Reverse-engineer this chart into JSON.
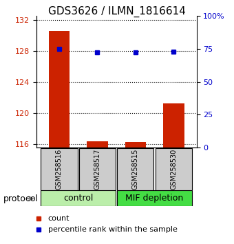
{
  "title": "GDS3626 / ILMN_1816614",
  "samples": [
    "GSM258516",
    "GSM258517",
    "GSM258515",
    "GSM258530"
  ],
  "counts": [
    130.5,
    116.3,
    116.2,
    121.2
  ],
  "percentiles": [
    75.0,
    72.5,
    72.5,
    72.8
  ],
  "ylim_left": [
    115.5,
    132.5
  ],
  "ylim_right": [
    0,
    100
  ],
  "yticks_left": [
    116,
    120,
    124,
    128,
    132
  ],
  "yticks_right": [
    0,
    25,
    50,
    75,
    100
  ],
  "ytick_labels_right": [
    "0",
    "25",
    "50",
    "75",
    "100%"
  ],
  "bar_color": "#cc2200",
  "dot_color": "#0000cc",
  "bar_width": 0.55,
  "groups": [
    {
      "label": "control",
      "samples": [
        0,
        1
      ],
      "color": "#bbeeaa"
    },
    {
      "label": "MIF depletion",
      "samples": [
        2,
        3
      ],
      "color": "#44dd44"
    }
  ],
  "protocol_label": "protocol",
  "legend_count_label": "count",
  "legend_pct_label": "percentile rank within the sample",
  "title_fontsize": 11,
  "tick_fontsize": 8,
  "sample_fontsize": 7,
  "group_fontsize": 9,
  "legend_fontsize": 8
}
